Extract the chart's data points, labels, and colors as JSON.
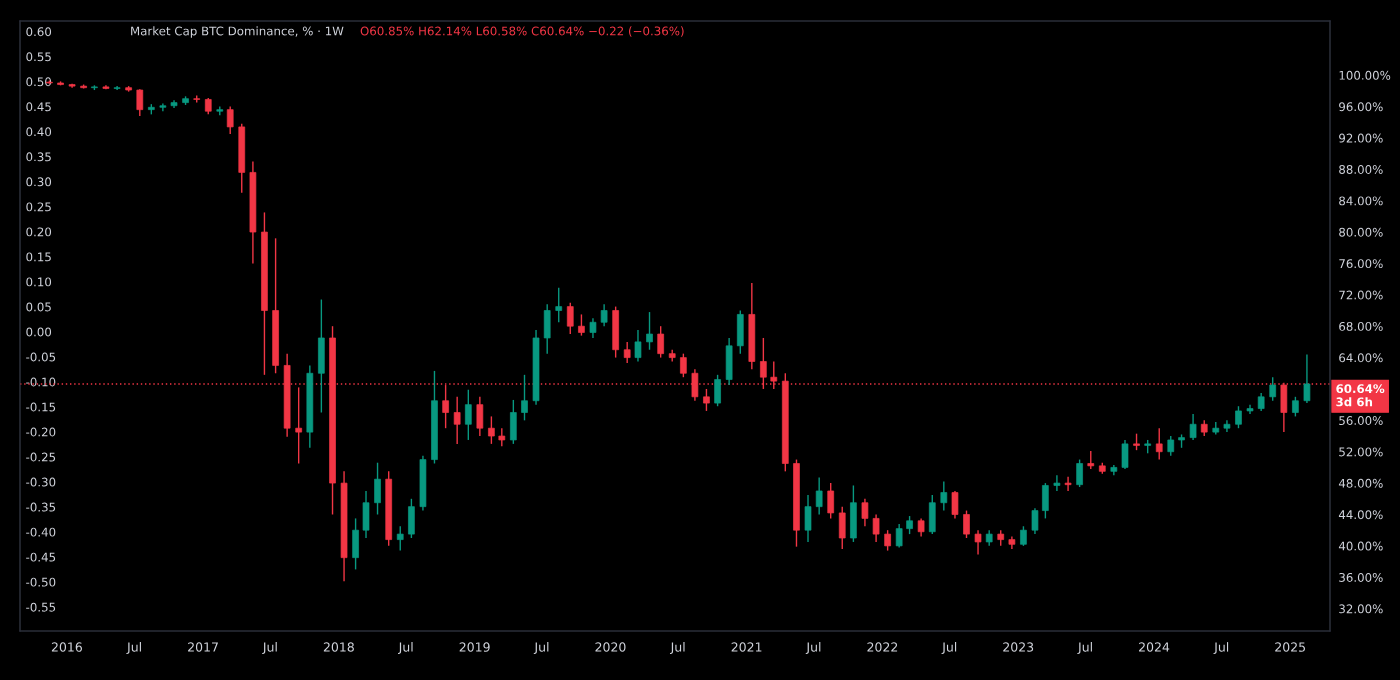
{
  "chart_data": {
    "type": "candlestick",
    "title": "Market Cap BTC Dominance, % · 1W",
    "subtitle": "O60.85% H62.14% L60.58% C60.64% −0.22 (−0.36%)",
    "x": [
      "2015-11-15",
      "2015-12-15",
      "2016-01-15",
      "2016-02-15",
      "2016-03-15",
      "2016-04-15",
      "2016-05-15",
      "2016-06-15",
      "2016-07-15",
      "2016-08-15",
      "2016-09-15",
      "2016-10-15",
      "2016-11-15",
      "2016-12-15",
      "2017-01-15",
      "2017-02-15",
      "2017-03-15",
      "2017-04-15",
      "2017-05-15",
      "2017-06-15",
      "2017-07-15",
      "2017-08-15",
      "2017-09-15",
      "2017-10-15",
      "2017-11-15",
      "2017-12-15",
      "2018-01-15",
      "2018-02-15",
      "2018-03-15",
      "2018-04-15",
      "2018-05-15",
      "2018-06-15",
      "2018-07-15",
      "2018-08-15",
      "2018-09-15",
      "2018-10-15",
      "2018-11-15",
      "2018-12-15",
      "2019-01-15",
      "2019-02-15",
      "2019-03-15",
      "2019-04-15",
      "2019-05-15",
      "2019-06-15",
      "2019-07-15",
      "2019-08-15",
      "2019-09-15",
      "2019-10-15",
      "2019-11-15",
      "2019-12-15",
      "2020-01-15",
      "2020-02-15",
      "2020-03-15",
      "2020-04-15",
      "2020-05-15",
      "2020-06-15",
      "2020-07-15",
      "2020-08-15",
      "2020-09-15",
      "2020-10-15",
      "2020-11-15",
      "2020-12-15",
      "2021-01-15",
      "2021-02-15",
      "2021-03-15",
      "2021-04-15",
      "2021-05-15",
      "2021-06-15",
      "2021-07-15",
      "2021-08-15",
      "2021-09-15",
      "2021-10-15",
      "2021-11-15",
      "2021-12-15",
      "2022-01-15",
      "2022-02-15",
      "2022-03-15",
      "2022-04-15",
      "2022-05-15",
      "2022-06-15",
      "2022-07-15",
      "2022-08-15",
      "2022-09-15",
      "2022-10-15",
      "2022-11-15",
      "2022-12-15",
      "2023-01-15",
      "2023-02-15",
      "2023-03-15",
      "2023-04-15",
      "2023-05-15",
      "2023-06-15",
      "2023-07-15",
      "2023-08-15",
      "2023-09-15",
      "2023-10-15",
      "2023-11-15",
      "2023-12-15",
      "2024-01-15",
      "2024-02-15",
      "2024-03-15",
      "2024-04-15",
      "2024-05-15",
      "2024-06-15",
      "2024-07-15",
      "2024-08-15",
      "2024-09-15",
      "2024-10-15",
      "2024-11-15",
      "2024-12-15",
      "2025-01-15",
      "2025-02-15"
    ],
    "series": [
      {
        "axis": "y2",
        "ohlc": [
          [
            99.1,
            99.3,
            98.9,
            99.0
          ],
          [
            99.0,
            99.2,
            98.7,
            98.8
          ],
          [
            98.8,
            98.9,
            98.4,
            98.6
          ],
          [
            98.6,
            98.8,
            98.3,
            98.4
          ],
          [
            98.4,
            98.7,
            98.1,
            98.5
          ],
          [
            98.5,
            98.7,
            98.2,
            98.3
          ],
          [
            98.3,
            98.6,
            98.1,
            98.4
          ],
          [
            98.4,
            98.6,
            97.9,
            98.1
          ],
          [
            98.1,
            98.2,
            94.8,
            95.6
          ],
          [
            95.6,
            96.3,
            95.0,
            95.9
          ],
          [
            95.9,
            96.4,
            95.4,
            96.1
          ],
          [
            96.1,
            96.8,
            95.8,
            96.5
          ],
          [
            96.5,
            97.3,
            96.2,
            97.0
          ],
          [
            97.0,
            97.4,
            96.5,
            96.9
          ],
          [
            96.9,
            97.1,
            95.0,
            95.4
          ],
          [
            95.4,
            96.0,
            94.9,
            95.6
          ],
          [
            95.6,
            96.0,
            92.5,
            93.4
          ],
          [
            93.4,
            93.8,
            85.0,
            87.6
          ],
          [
            87.6,
            89.0,
            76.0,
            80.0
          ],
          [
            80.0,
            82.5,
            61.8,
            70.0
          ],
          [
            70.0,
            79.2,
            62.0,
            63.0
          ],
          [
            63.0,
            64.5,
            53.9,
            55.0
          ],
          [
            55.0,
            60.2,
            50.5,
            54.5
          ],
          [
            54.5,
            63.0,
            52.5,
            62.0
          ],
          [
            62.0,
            71.4,
            57.0,
            66.5
          ],
          [
            66.5,
            68.0,
            44.0,
            48.0
          ],
          [
            48.0,
            49.5,
            35.5,
            38.5
          ],
          [
            38.5,
            43.5,
            37.0,
            42.0
          ],
          [
            42.0,
            47.0,
            41.0,
            45.5
          ],
          [
            45.5,
            50.6,
            44.0,
            48.5
          ],
          [
            48.5,
            49.5,
            40.0,
            40.8
          ],
          [
            40.8,
            42.5,
            39.4,
            41.5
          ],
          [
            41.5,
            46.0,
            41.0,
            45.0
          ],
          [
            45.0,
            51.5,
            44.5,
            51.0
          ],
          [
            51.0,
            62.3,
            50.5,
            58.5
          ],
          [
            58.5,
            60.5,
            55.0,
            57.0
          ],
          [
            57.0,
            59.0,
            53.0,
            55.5
          ],
          [
            55.5,
            59.9,
            53.5,
            58.0
          ],
          [
            58.0,
            59.0,
            54.0,
            55.0
          ],
          [
            55.0,
            56.5,
            53.0,
            54.0
          ],
          [
            54.0,
            55.0,
            52.7,
            53.5
          ],
          [
            53.5,
            58.6,
            53.0,
            57.0
          ],
          [
            57.0,
            61.8,
            56.0,
            58.5
          ],
          [
            58.5,
            67.5,
            58.0,
            66.5
          ],
          [
            66.5,
            70.8,
            64.5,
            70.0
          ],
          [
            70.0,
            72.9,
            68.5,
            70.5
          ],
          [
            70.5,
            71.0,
            67.0,
            68.0
          ],
          [
            68.0,
            69.5,
            66.8,
            67.2
          ],
          [
            67.2,
            69.0,
            66.5,
            68.5
          ],
          [
            68.5,
            70.8,
            68.0,
            70.0
          ],
          [
            70.0,
            70.5,
            64.0,
            65.0
          ],
          [
            65.0,
            66.0,
            63.3,
            64.0
          ],
          [
            64.0,
            67.5,
            63.5,
            66.0
          ],
          [
            66.0,
            69.8,
            65.0,
            67.0
          ],
          [
            67.0,
            68.0,
            64.0,
            64.5
          ],
          [
            64.5,
            65.0,
            63.5,
            64.0
          ],
          [
            64.0,
            64.5,
            61.5,
            62.0
          ],
          [
            62.0,
            62.5,
            58.5,
            59.0
          ],
          [
            59.0,
            60.0,
            57.2,
            58.2
          ],
          [
            58.2,
            61.8,
            57.8,
            61.2
          ],
          [
            61.2,
            66.5,
            60.5,
            65.5
          ],
          [
            65.5,
            70.0,
            64.5,
            69.5
          ],
          [
            69.5,
            73.5,
            62.5,
            63.5
          ],
          [
            63.5,
            66.5,
            60.0,
            61.5
          ],
          [
            61.5,
            63.5,
            60.0,
            61.0
          ],
          [
            61.0,
            62.0,
            49.5,
            50.5
          ],
          [
            50.5,
            51.0,
            39.9,
            42.0
          ],
          [
            42.0,
            46.5,
            40.5,
            45.0
          ],
          [
            45.0,
            48.7,
            44.0,
            47.0
          ],
          [
            47.0,
            48.0,
            43.5,
            44.2
          ],
          [
            44.2,
            45.0,
            39.6,
            41.0
          ],
          [
            41.0,
            47.7,
            40.5,
            45.5
          ],
          [
            45.5,
            46.0,
            42.5,
            43.5
          ],
          [
            43.5,
            44.0,
            40.5,
            41.5
          ],
          [
            41.5,
            42.0,
            39.4,
            40.0
          ],
          [
            40.0,
            42.8,
            39.8,
            42.2
          ],
          [
            42.2,
            43.8,
            41.5,
            43.2
          ],
          [
            43.2,
            43.5,
            41.2,
            41.8
          ],
          [
            41.8,
            46.5,
            41.5,
            45.5
          ],
          [
            45.5,
            48.2,
            44.5,
            46.8
          ],
          [
            46.8,
            47.0,
            43.5,
            44.0
          ],
          [
            44.0,
            44.5,
            41.0,
            41.5
          ],
          [
            41.5,
            42.0,
            38.9,
            40.5
          ],
          [
            40.5,
            42.0,
            40.0,
            41.5
          ],
          [
            41.5,
            42.0,
            40.0,
            40.8
          ],
          [
            40.8,
            41.2,
            39.6,
            40.2
          ],
          [
            40.2,
            42.5,
            40.0,
            42.0
          ],
          [
            42.0,
            44.8,
            41.5,
            44.5
          ],
          [
            44.5,
            48.0,
            43.5,
            47.7
          ],
          [
            47.7,
            49.0,
            47.0,
            48.0
          ],
          [
            48.0,
            48.8,
            47.0,
            47.8
          ],
          [
            47.8,
            51.0,
            47.5,
            50.5
          ],
          [
            50.5,
            52.1,
            49.8,
            50.2
          ],
          [
            50.2,
            50.6,
            49.2,
            49.5
          ],
          [
            49.5,
            50.3,
            49.0,
            50.0
          ],
          [
            50.0,
            53.5,
            49.8,
            53.0
          ],
          [
            53.0,
            54.3,
            52.2,
            52.8
          ],
          [
            52.8,
            53.5,
            51.8,
            53.0
          ],
          [
            53.0,
            55.0,
            51.0,
            52.0
          ],
          [
            52.0,
            54.0,
            51.5,
            53.5
          ],
          [
            53.5,
            54.2,
            52.5,
            53.8
          ],
          [
            53.8,
            56.8,
            53.5,
            55.5
          ],
          [
            55.5,
            56.0,
            54.0,
            54.5
          ],
          [
            54.5,
            55.8,
            54.2,
            55.0
          ],
          [
            55.0,
            56.0,
            54.5,
            55.5
          ],
          [
            55.5,
            57.8,
            55.0,
            57.2
          ],
          [
            57.2,
            58.0,
            56.8,
            57.5
          ],
          [
            57.5,
            59.5,
            57.2,
            59.0
          ],
          [
            59.0,
            61.5,
            58.5,
            60.5
          ],
          [
            60.5,
            60.8,
            54.5,
            57.0
          ],
          [
            57.0,
            59.0,
            56.5,
            58.5
          ],
          [
            58.5,
            64.4,
            58.2,
            60.64
          ]
        ],
        "colors": [
          "#f23645",
          "#f23645",
          "#f23645",
          "#f23645",
          "#089981",
          "#f23645",
          "#089981",
          "#f23645",
          "#f23645",
          "#089981",
          "#089981",
          "#089981",
          "#089981",
          "#f23645",
          "#f23645",
          "#089981",
          "#f23645",
          "#f23645",
          "#f23645",
          "#f23645",
          "#f23645",
          "#f23645",
          "#f23645",
          "#089981",
          "#089981",
          "#f23645",
          "#f23645",
          "#089981",
          "#089981",
          "#089981",
          "#f23645",
          "#089981",
          "#089981",
          "#089981",
          "#089981",
          "#f23645",
          "#f23645",
          "#089981",
          "#f23645",
          "#f23645",
          "#f23645",
          "#089981",
          "#089981",
          "#089981",
          "#089981",
          "#089981",
          "#f23645",
          "#f23645",
          "#089981",
          "#089981",
          "#f23645",
          "#f23645",
          "#089981",
          "#089981",
          "#f23645",
          "#f23645",
          "#f23645",
          "#f23645",
          "#f23645",
          "#089981",
          "#089981",
          "#089981",
          "#f23645",
          "#f23645",
          "#f23645",
          "#f23645",
          "#f23645",
          "#089981",
          "#089981",
          "#f23645",
          "#f23645",
          "#089981",
          "#f23645",
          "#f23645",
          "#f23645",
          "#089981",
          "#089981",
          "#f23645",
          "#089981",
          "#089981",
          "#f23645",
          "#f23645",
          "#f23645",
          "#089981",
          "#f23645",
          "#f23645",
          "#089981",
          "#089981",
          "#089981",
          "#089981",
          "#f23645",
          "#089981",
          "#f23645",
          "#f23645",
          "#089981",
          "#089981",
          "#f23645",
          "#089981",
          "#f23645",
          "#089981",
          "#089981",
          "#089981",
          "#f23645",
          "#089981",
          "#089981",
          "#089981",
          "#089981",
          "#089981",
          "#089981",
          "#f23645",
          "#089981",
          "#089981"
        ]
      }
    ],
    "xlim": [
      "2015-08-28",
      "2025-04-18"
    ],
    "xticks": [
      {
        "value": "2016-01-01",
        "label": "2016"
      },
      {
        "value": "2016-07-01",
        "label": "Jul"
      },
      {
        "value": "2017-01-01",
        "label": "2017"
      },
      {
        "value": "2017-07-01",
        "label": "Jul"
      },
      {
        "value": "2018-01-01",
        "label": "2018"
      },
      {
        "value": "2018-07-01",
        "label": "Jul"
      },
      {
        "value": "2019-01-01",
        "label": "2019"
      },
      {
        "value": "2019-07-01",
        "label": "Jul"
      },
      {
        "value": "2020-01-01",
        "label": "2020"
      },
      {
        "value": "2020-07-01",
        "label": "Jul"
      },
      {
        "value": "2021-01-01",
        "label": "2021"
      },
      {
        "value": "2021-07-01",
        "label": "Jul"
      },
      {
        "value": "2022-01-01",
        "label": "2022"
      },
      {
        "value": "2022-07-01",
        "label": "Jul"
      },
      {
        "value": "2023-01-01",
        "label": "2023"
      },
      {
        "value": "2023-07-01",
        "label": "Jul"
      },
      {
        "value": "2024-01-01",
        "label": "2024"
      },
      {
        "value": "2024-07-01",
        "label": "Jul"
      },
      {
        "value": "2025-01-01",
        "label": "2025"
      }
    ],
    "ylim": [
      -0.598,
      0.621
    ],
    "yticks": [
      {
        "value": 0.6,
        "label": "0.60"
      },
      {
        "value": 0.55,
        "label": "0.55"
      },
      {
        "value": 0.5,
        "label": "0.50"
      },
      {
        "value": 0.45,
        "label": "0.45"
      },
      {
        "value": 0.4,
        "label": "0.40"
      },
      {
        "value": 0.35,
        "label": "0.35"
      },
      {
        "value": 0.3,
        "label": "0.30"
      },
      {
        "value": 0.25,
        "label": "0.25"
      },
      {
        "value": 0.2,
        "label": "0.20"
      },
      {
        "value": 0.15,
        "label": "0.15"
      },
      {
        "value": 0.1,
        "label": "0.10"
      },
      {
        "value": 0.05,
        "label": "0.05"
      },
      {
        "value": 0,
        "label": "0.00"
      },
      {
        "value": -0.05,
        "label": "-0.05"
      },
      {
        "value": -0.1,
        "label": "-0.10"
      },
      {
        "value": -0.15,
        "label": "-0.15"
      },
      {
        "value": -0.2,
        "label": "-0.20"
      },
      {
        "value": -0.25,
        "label": "-0.25"
      },
      {
        "value": -0.3,
        "label": "-0.30"
      },
      {
        "value": -0.35,
        "label": "-0.35"
      },
      {
        "value": -0.4,
        "label": "-0.40"
      },
      {
        "value": -0.45,
        "label": "-0.45"
      },
      {
        "value": -0.5,
        "label": "-0.50"
      },
      {
        "value": -0.55,
        "label": "-0.55"
      }
    ],
    "y2lim": [
      29.15,
      106.9
    ],
    "y2ticks": [
      {
        "value": 32,
        "label": "32.00%"
      },
      {
        "value": 36,
        "label": "36.00%"
      },
      {
        "value": 40,
        "label": "40.00%"
      },
      {
        "value": 44,
        "label": "44.00%"
      },
      {
        "value": 48,
        "label": "48.00%"
      },
      {
        "value": 52,
        "label": "52.00%"
      },
      {
        "value": 56,
        "label": "56.00%"
      },
      {
        "value": 64,
        "label": "64.00%"
      },
      {
        "value": 68,
        "label": "68.00%"
      },
      {
        "value": 72,
        "label": "72.00%"
      },
      {
        "value": 76,
        "label": "76.00%"
      },
      {
        "value": 80,
        "label": "80.00%"
      },
      {
        "value": 84,
        "label": "84.00%"
      },
      {
        "value": 88,
        "label": "88.00%"
      },
      {
        "value": 92,
        "label": "92.00%"
      },
      {
        "value": 96,
        "label": "96.00%"
      },
      {
        "value": 100,
        "label": "100.00%"
      }
    ],
    "ref_lines": [
      {
        "axis": "y2",
        "value": 60.64,
        "label": "60.64%\n3d 6h",
        "color": "#f23645",
        "line_style": "dotted"
      }
    ]
  }
}
